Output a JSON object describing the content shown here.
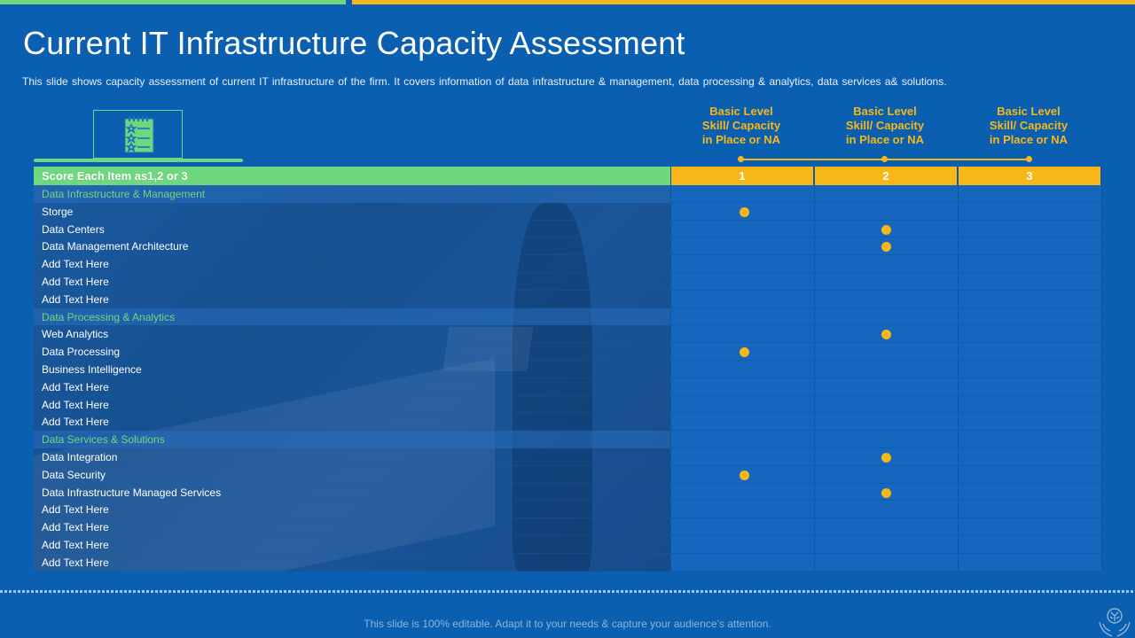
{
  "title": "Current IT Infrastructure Capacity Assessment",
  "subtitle": "This slide shows capacity assessment of current IT infrastructure of the firm. It covers information of data infrastructure & management, data processing & analytics, data services a& solutions.",
  "columns": [
    {
      "heading": "Basic Level Skill/ Capacity in Place or NA",
      "lines": [
        "Basic Level",
        "Skill/ Capacity",
        "in Place or NA"
      ],
      "score": "1"
    },
    {
      "heading": "Basic Level Skill/ Capacity in Place or NA",
      "lines": [
        "Basic Level",
        "Skill/ Capacity",
        "in Place or NA"
      ],
      "score": "2"
    },
    {
      "heading": "Basic Level Skill/ Capacity in Place or NA",
      "lines": [
        "Basic Level",
        "Skill/ Capacity",
        "in Place or NA"
      ],
      "score": "3"
    }
  ],
  "table_header": "Score Each Item as1,2 or 3",
  "rows": [
    {
      "label": "Data Infrastructure & Management",
      "type": "category",
      "score": null
    },
    {
      "label": "Storge",
      "type": "item",
      "score": 1
    },
    {
      "label": "Data Centers",
      "type": "item",
      "score": 2
    },
    {
      "label": "Data Management Architecture",
      "type": "item",
      "score": 2
    },
    {
      "label": "Add Text Here",
      "type": "item",
      "score": null
    },
    {
      "label": "Add Text Here",
      "type": "item",
      "score": null
    },
    {
      "label": "Add Text Here",
      "type": "item",
      "score": null
    },
    {
      "label": "Data Processing & Analytics",
      "type": "category",
      "score": null
    },
    {
      "label": "Web Analytics",
      "type": "item",
      "score": 2
    },
    {
      "label": "Data Processing",
      "type": "item",
      "score": 1
    },
    {
      "label": "Business Intelligence",
      "type": "item",
      "score": null
    },
    {
      "label": "Add Text Here",
      "type": "item",
      "score": null
    },
    {
      "label": "Add Text Here",
      "type": "item",
      "score": null
    },
    {
      "label": "Add Text Here",
      "type": "item",
      "score": null
    },
    {
      "label": "Data Services & Solutions",
      "type": "category",
      "score": null
    },
    {
      "label": "Data Integration",
      "type": "item",
      "score": 2
    },
    {
      "label": "Data Security",
      "type": "item",
      "score": 1
    },
    {
      "label": "Data Infrastructure Managed Services",
      "type": "item",
      "score": 2
    },
    {
      "label": "Add Text Here",
      "type": "item",
      "score": null
    },
    {
      "label": "Add Text Here",
      "type": "item",
      "score": null
    },
    {
      "label": "Add Text Here",
      "type": "item",
      "score": null
    },
    {
      "label": "Add Text Here",
      "type": "item",
      "score": null
    }
  ],
  "footer": "This slide is 100% editable. Adapt it to your needs & capture your audience’s attention.",
  "colors": {
    "accent_green": "#6fd87e",
    "accent_yellow": "#f7b718",
    "background": "#0a5fb0"
  },
  "icons": {
    "header_icon": "checklist-icon",
    "corner_icon": "brain-hands-icon"
  }
}
